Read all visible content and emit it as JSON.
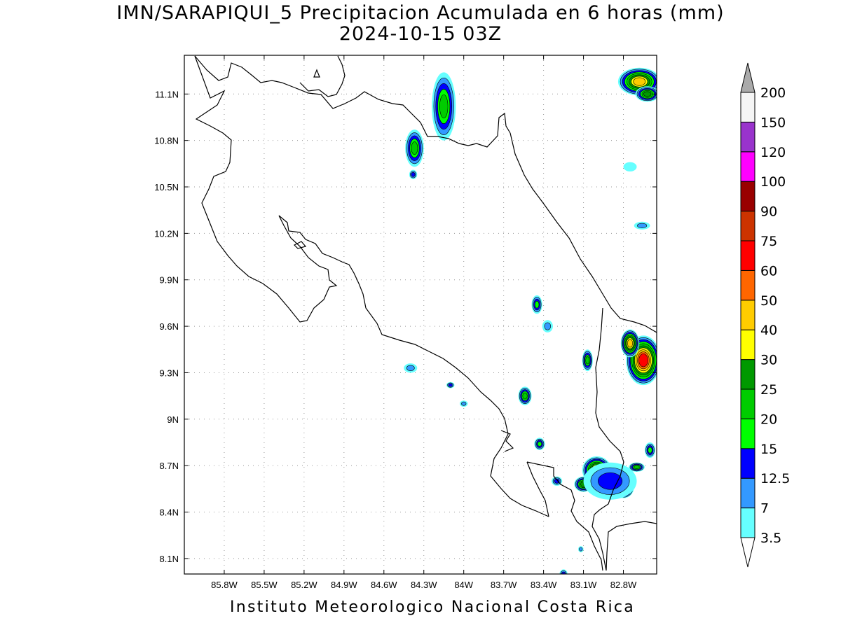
{
  "title": {
    "line1": "IMN/SARAPIQUI_5 Precipitacion Acumulada en 6 horas (mm)",
    "line2": "2024-10-15 03Z"
  },
  "footer": "Instituto Meteorologico Nacional Costa Rica",
  "map": {
    "lon_range": [
      -86.1,
      -82.55
    ],
    "lat_range": [
      8.0,
      11.35
    ],
    "lon_ticks": [
      {
        "value": -85.8,
        "label": "85.8W"
      },
      {
        "value": -85.5,
        "label": "85.5W"
      },
      {
        "value": -85.2,
        "label": "85.2W"
      },
      {
        "value": -84.9,
        "label": "84.9W"
      },
      {
        "value": -84.6,
        "label": "84.6W"
      },
      {
        "value": -84.3,
        "label": "84.3W"
      },
      {
        "value": -84.0,
        "label": "84W"
      },
      {
        "value": -83.7,
        "label": "83.7W"
      },
      {
        "value": -83.4,
        "label": "83.4W"
      },
      {
        "value": -83.1,
        "label": "83.1W"
      },
      {
        "value": -82.8,
        "label": "82.8W"
      }
    ],
    "lat_ticks": [
      {
        "value": 8.1,
        "label": "8.1N"
      },
      {
        "value": 8.4,
        "label": "8.4N"
      },
      {
        "value": 8.7,
        "label": "8.7N"
      },
      {
        "value": 9.0,
        "label": "9N"
      },
      {
        "value": 9.3,
        "label": "9.3N"
      },
      {
        "value": 9.6,
        "label": "9.6N"
      },
      {
        "value": 9.9,
        "label": "9.9N"
      },
      {
        "value": 10.2,
        "label": "10.2N"
      },
      {
        "value": 10.5,
        "label": "10.5N"
      },
      {
        "value": 10.8,
        "label": "10.8N"
      },
      {
        "value": 11.1,
        "label": "11.1N"
      }
    ],
    "grid": true
  },
  "colorbar": {
    "levels": [
      {
        "label": "3.5",
        "color": "#66ffff"
      },
      {
        "label": "7",
        "color": "#3399ff"
      },
      {
        "label": "12.5",
        "color": "#0000ff"
      },
      {
        "label": "15",
        "color": "#00ff00"
      },
      {
        "label": "20",
        "color": "#00cc00"
      },
      {
        "label": "25",
        "color": "#009900"
      },
      {
        "label": "30",
        "color": "#ffff00"
      },
      {
        "label": "40",
        "color": "#ffcc00"
      },
      {
        "label": "50",
        "color": "#ff6600"
      },
      {
        "label": "60",
        "color": "#ff0000"
      },
      {
        "label": "75",
        "color": "#cc3300"
      },
      {
        "label": "90",
        "color": "#990000"
      },
      {
        "label": "100",
        "color": "#ff00ff"
      },
      {
        "label": "120",
        "color": "#9933cc"
      },
      {
        "label": "150",
        "color": "#f5f5f5"
      },
      {
        "label": "200",
        "color": "#aaaaaa"
      }
    ],
    "under_color": "#ffffff",
    "over_color": "#aaaaaa"
  },
  "precip_cells": [
    {
      "lon": -82.68,
      "lat": 11.18,
      "rx": 0.16,
      "ry": 0.09,
      "max": 40
    },
    {
      "lon": -82.62,
      "lat": 11.1,
      "rx": 0.09,
      "ry": 0.05,
      "max": 25
    },
    {
      "lon": -84.15,
      "lat": 11.02,
      "rx": 0.09,
      "ry": 0.22,
      "max": 20
    },
    {
      "lon": -84.37,
      "lat": 10.75,
      "rx": 0.07,
      "ry": 0.12,
      "max": 20
    },
    {
      "lon": -84.38,
      "lat": 10.58,
      "rx": 0.03,
      "ry": 0.03,
      "max": 12.5
    },
    {
      "lon": -82.75,
      "lat": 10.63,
      "rx": 0.05,
      "ry": 0.03,
      "max": 3.5
    },
    {
      "lon": -82.66,
      "lat": 10.25,
      "rx": 0.06,
      "ry": 0.025,
      "max": 7
    },
    {
      "lon": -83.45,
      "lat": 9.74,
      "rx": 0.04,
      "ry": 0.06,
      "max": 15
    },
    {
      "lon": -82.65,
      "lat": 9.38,
      "rx": 0.13,
      "ry": 0.16,
      "max": 60
    },
    {
      "lon": -82.75,
      "lat": 9.49,
      "rx": 0.07,
      "ry": 0.09,
      "max": 40
    },
    {
      "lon": -83.07,
      "lat": 9.38,
      "rx": 0.04,
      "ry": 0.07,
      "max": 20
    },
    {
      "lon": -83.37,
      "lat": 9.6,
      "rx": 0.04,
      "ry": 0.04,
      "max": 7
    },
    {
      "lon": -83.54,
      "lat": 9.15,
      "rx": 0.05,
      "ry": 0.06,
      "max": 20
    },
    {
      "lon": -84.4,
      "lat": 9.33,
      "rx": 0.05,
      "ry": 0.03,
      "max": 7
    },
    {
      "lon": -84.1,
      "lat": 9.22,
      "rx": 0.03,
      "ry": 0.02,
      "max": 12.5
    },
    {
      "lon": -84.0,
      "lat": 9.1,
      "rx": 0.03,
      "ry": 0.02,
      "max": 7
    },
    {
      "lon": -83.43,
      "lat": 8.84,
      "rx": 0.04,
      "ry": 0.04,
      "max": 15
    },
    {
      "lon": -83.0,
      "lat": 8.67,
      "rx": 0.11,
      "ry": 0.09,
      "max": 40
    },
    {
      "lon": -83.1,
      "lat": 8.58,
      "rx": 0.07,
      "ry": 0.05,
      "max": 25
    },
    {
      "lon": -82.8,
      "lat": 8.56,
      "rx": 0.08,
      "ry": 0.07,
      "max": 60
    },
    {
      "lon": -82.9,
      "lat": 8.6,
      "rx": 0.2,
      "ry": 0.12,
      "max": 12.5
    },
    {
      "lon": -82.7,
      "lat": 8.69,
      "rx": 0.06,
      "ry": 0.03,
      "max": 20
    },
    {
      "lon": -82.6,
      "lat": 8.8,
      "rx": 0.04,
      "ry": 0.05,
      "max": 15
    },
    {
      "lon": -83.3,
      "lat": 8.6,
      "rx": 0.04,
      "ry": 0.03,
      "max": 12.5
    },
    {
      "lon": -83.25,
      "lat": 8.0,
      "rx": 0.03,
      "ry": 0.03,
      "max": 12.5
    },
    {
      "lon": -83.12,
      "lat": 8.16,
      "rx": 0.02,
      "ry": 0.02,
      "max": 7
    }
  ]
}
